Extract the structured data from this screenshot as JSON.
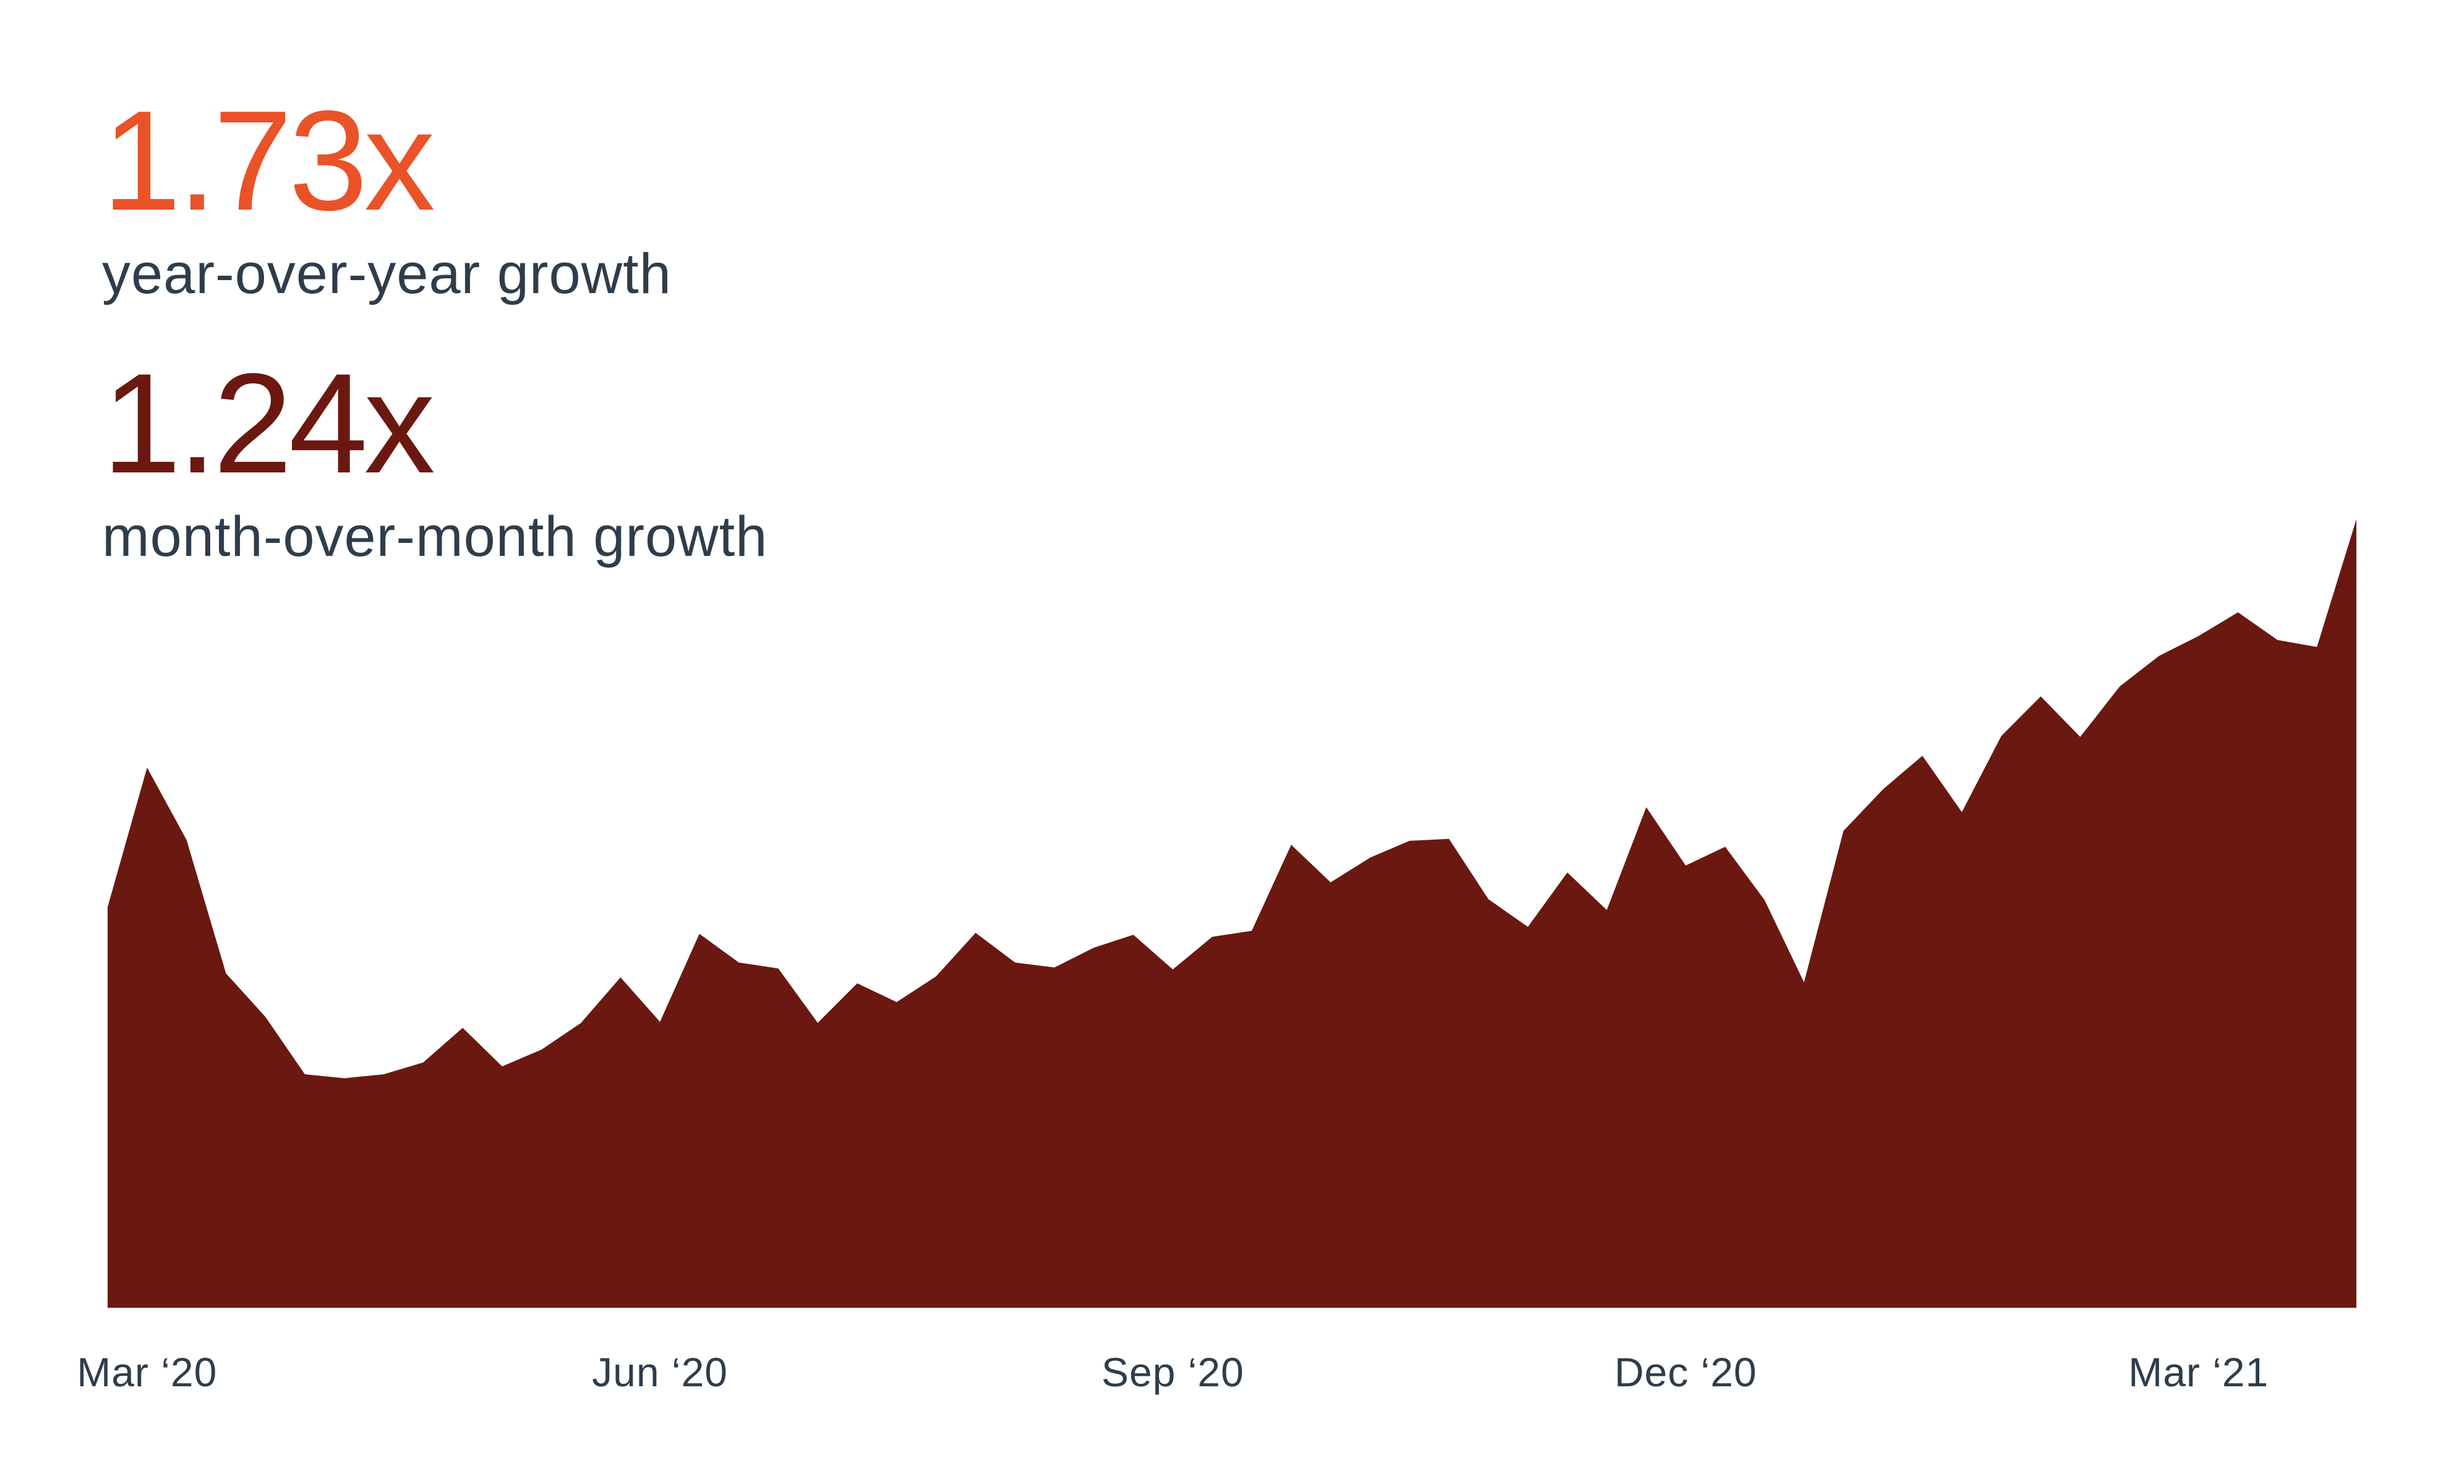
{
  "colors": {
    "yoy_accent": "#ea5228",
    "mom_accent": "#6b1810",
    "area_fill": "#6b1810",
    "label_text": "#2e3d4b"
  },
  "stats": {
    "yoy": {
      "value": "1.73x",
      "label": "year-over-year growth"
    },
    "mom": {
      "value": "1.24x",
      "label": "month-over-month growth"
    }
  },
  "chart_data": {
    "type": "area",
    "title": "",
    "xlabel": "",
    "ylabel": "",
    "grid": false,
    "legend": "none",
    "x_tick_labels": [
      "Mar ‘20",
      "Jun ‘20",
      "Sep ‘20",
      "Dec ‘20",
      "Mar ‘21"
    ],
    "x_tick_positions": [
      1,
      14,
      27,
      40,
      53
    ],
    "ylim": [
      0,
      100
    ],
    "series": [
      {
        "values": [
          40.5,
          54.6,
          47.3,
          33.8,
          29.4,
          23.6,
          23.2,
          23.6,
          24.8,
          28.3,
          24.4,
          26.1,
          28.8,
          33.4,
          28.9,
          37.8,
          34.9,
          34.3,
          28.8,
          32.8,
          30.9,
          33.5,
          37.9,
          34.9,
          34.4,
          36.4,
          37.7,
          34.2,
          37.5,
          38.1,
          46.8,
          43.0,
          45.5,
          47.2,
          47.4,
          41.3,
          38.5,
          44.0,
          40.2,
          50.6,
          44.7,
          46.6,
          41.2,
          32.9,
          48.2,
          52.4,
          55.8,
          50.1,
          57.8,
          61.8,
          57.7,
          62.8,
          65.9,
          67.9,
          70.3,
          67.5,
          66.8,
          79.7
        ]
      }
    ]
  }
}
